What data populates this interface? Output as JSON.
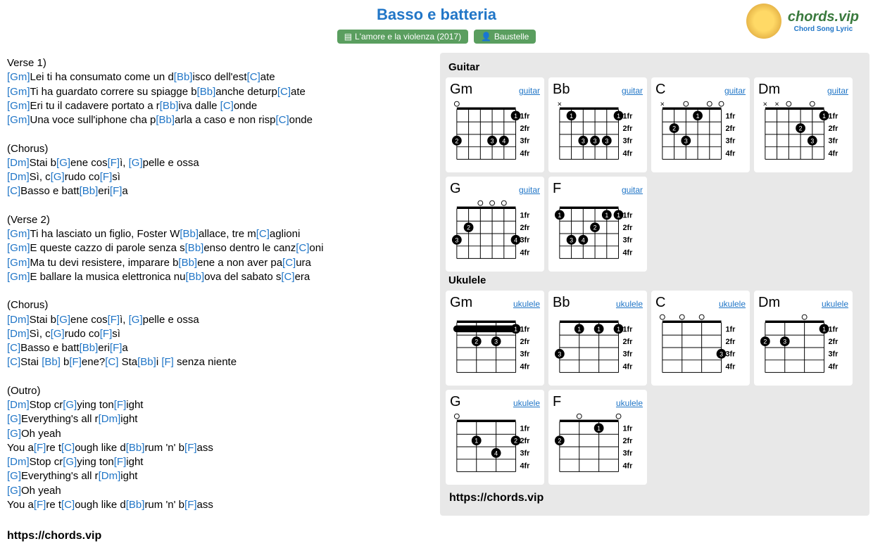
{
  "title": "Basso e batteria",
  "album_badge": "L'amore e la violenza (2017)",
  "artist_badge": "Baustelle",
  "logo": {
    "top": "chords.vip",
    "bottom": "Chord Song Lyric"
  },
  "footer_url": "https://chords.vip",
  "colors": {
    "link": "#2176c7",
    "badge_bg": "#5a9e5f",
    "panel_bg": "#e8e8e8"
  },
  "sections": {
    "guitar": {
      "label": "Guitar",
      "instr": "guitar"
    },
    "ukulele": {
      "label": "Ukulele",
      "instr": "ukulele"
    }
  },
  "fret_labels": [
    "1fr",
    "2fr",
    "3fr",
    "4fr"
  ],
  "chords_guitar": [
    {
      "name": "Gm",
      "strings": 6,
      "open": [
        null,
        null,
        0,
        null,
        null,
        null
      ],
      "mute": [],
      "dots": [
        [
          5,
          0,
          1
        ],
        [
          0,
          2,
          2
        ],
        [
          3,
          2,
          3
        ],
        [
          4,
          2,
          4
        ]
      ]
    },
    {
      "name": "Bb",
      "strings": 6,
      "open": [],
      "mute": [
        0
      ],
      "dots": [
        [
          1,
          0,
          1
        ],
        [
          5,
          0,
          1
        ],
        [
          2,
          2,
          3
        ],
        [
          3,
          2,
          3
        ],
        [
          4,
          2,
          3
        ]
      ]
    },
    {
      "name": "C",
      "strings": 6,
      "open": [
        null,
        null,
        2,
        null,
        4,
        5
      ],
      "mute": [
        0
      ],
      "dots": [
        [
          3,
          0,
          1
        ],
        [
          1,
          1,
          2
        ],
        [
          2,
          2,
          3
        ]
      ]
    },
    {
      "name": "Dm",
      "strings": 6,
      "open": [
        null,
        null,
        2,
        null,
        null,
        4
      ],
      "mute": [
        0,
        1
      ],
      "dots": [
        [
          5,
          0,
          1
        ],
        [
          3,
          1,
          2
        ],
        [
          4,
          2,
          3
        ]
      ]
    },
    {
      "name": "G",
      "strings": 6,
      "open": [
        null,
        null,
        2,
        3,
        4,
        null
      ],
      "mute": [],
      "dots": [
        [
          1,
          1,
          2
        ],
        [
          0,
          2,
          3
        ],
        [
          5,
          2,
          4
        ]
      ]
    },
    {
      "name": "F",
      "strings": 6,
      "open": [],
      "mute": [],
      "dots": [
        [
          0,
          0,
          1
        ],
        [
          4,
          0,
          1
        ],
        [
          5,
          0,
          1
        ],
        [
          3,
          1,
          2
        ],
        [
          1,
          2,
          3
        ],
        [
          2,
          2,
          4
        ]
      ]
    }
  ],
  "chords_ukulele": [
    {
      "name": "Gm",
      "strings": 4,
      "open": [],
      "mute": [],
      "dots": [
        [
          3,
          0,
          1
        ],
        [
          1,
          1,
          2
        ],
        [
          2,
          1,
          3
        ]
      ],
      "barre": [
        0,
        3,
        0
      ]
    },
    {
      "name": "Bb",
      "strings": 4,
      "open": [],
      "mute": [],
      "dots": [
        [
          1,
          0,
          1
        ],
        [
          2,
          0,
          1
        ],
        [
          3,
          0,
          1
        ],
        [
          0,
          2,
          3
        ]
      ]
    },
    {
      "name": "C",
      "strings": 4,
      "open": [
        0,
        1,
        2,
        null
      ],
      "mute": [],
      "dots": [
        [
          3,
          2,
          3
        ]
      ]
    },
    {
      "name": "Dm",
      "strings": 4,
      "open": [
        null,
        null,
        2,
        null
      ],
      "mute": [],
      "dots": [
        [
          3,
          0,
          1
        ],
        [
          0,
          1,
          2
        ],
        [
          1,
          1,
          3
        ]
      ]
    },
    {
      "name": "G",
      "strings": 4,
      "open": [
        0,
        null,
        null,
        null
      ],
      "mute": [],
      "dots": [
        [
          1,
          1,
          1
        ],
        [
          3,
          1,
          2
        ],
        [
          2,
          2,
          4
        ]
      ]
    },
    {
      "name": "F",
      "strings": 4,
      "open": [
        null,
        1,
        null,
        3
      ],
      "mute": [],
      "dots": [
        [
          2,
          0,
          1
        ],
        [
          0,
          1,
          2
        ]
      ]
    }
  ],
  "lyrics": [
    {
      "type": "label",
      "text": "Verse 1)"
    },
    {
      "type": "line",
      "parts": [
        [
          "[Gm]",
          "Lei ti ha consumato come un d"
        ],
        [
          "[Bb]",
          "isco dell'est"
        ],
        [
          "[C]",
          "ate"
        ]
      ]
    },
    {
      "type": "line",
      "parts": [
        [
          "[Gm]",
          "Ti ha guardato correre su spiagge b"
        ],
        [
          "[Bb]",
          "anche deturp"
        ],
        [
          "[C]",
          "ate"
        ]
      ]
    },
    {
      "type": "line",
      "parts": [
        [
          "[Gm]",
          "Eri tu il cadavere portato a r"
        ],
        [
          "[Bb]",
          "iva dalle "
        ],
        [
          "[C]",
          "onde"
        ]
      ]
    },
    {
      "type": "line",
      "parts": [
        [
          "[Gm]",
          "Una voce sull'iphone cha p"
        ],
        [
          "[Bb]",
          "arla a caso e non risp"
        ],
        [
          "[C]",
          "onde"
        ]
      ]
    },
    {
      "type": "blank"
    },
    {
      "type": "label",
      "text": "(Chorus)"
    },
    {
      "type": "line",
      "parts": [
        [
          "[Dm]",
          "Stai b"
        ],
        [
          "[G]",
          "ene cos"
        ],
        [
          "[F]",
          "ì, "
        ],
        [
          "[G]",
          "pelle e ossa"
        ]
      ]
    },
    {
      "type": "line",
      "parts": [
        [
          "[Dm]",
          "Sì, c"
        ],
        [
          "[G]",
          "rudo co"
        ],
        [
          "[F]",
          "sì"
        ]
      ]
    },
    {
      "type": "line",
      "parts": [
        [
          "[C]",
          "Basso e batt"
        ],
        [
          "[Bb]",
          "eri"
        ],
        [
          "[F]",
          "a"
        ]
      ]
    },
    {
      "type": "blank"
    },
    {
      "type": "label",
      "text": "(Verse 2)"
    },
    {
      "type": "line",
      "parts": [
        [
          "[Gm]",
          "Ti ha lasciato un figlio, Foster W"
        ],
        [
          "[Bb]",
          "allace, tre m"
        ],
        [
          "[C]",
          "aglioni"
        ]
      ]
    },
    {
      "type": "line",
      "parts": [
        [
          "[Gm]",
          "E queste cazzo di parole senza s"
        ],
        [
          "[Bb]",
          "enso dentro le canz"
        ],
        [
          "[C]",
          "oni"
        ]
      ]
    },
    {
      "type": "line",
      "parts": [
        [
          "[Gm]",
          "Ma tu devi resistere, imparare b"
        ],
        [
          "[Bb]",
          "ene a non aver pa"
        ],
        [
          "[C]",
          "ura"
        ]
      ]
    },
    {
      "type": "line",
      "parts": [
        [
          "[Gm]",
          "E ballare la musica elettronica nu"
        ],
        [
          "[Bb]",
          "ova del sabato s"
        ],
        [
          "[C]",
          "era"
        ]
      ]
    },
    {
      "type": "blank"
    },
    {
      "type": "label",
      "text": "(Chorus)"
    },
    {
      "type": "line",
      "parts": [
        [
          "[Dm]",
          "Stai b"
        ],
        [
          "[G]",
          "ene cos"
        ],
        [
          "[F]",
          "ì, "
        ],
        [
          "[G]",
          "pelle e ossa"
        ]
      ]
    },
    {
      "type": "line",
      "parts": [
        [
          "[Dm]",
          "Sì, c"
        ],
        [
          "[G]",
          "rudo co"
        ],
        [
          "[F]",
          "sì"
        ]
      ]
    },
    {
      "type": "line",
      "parts": [
        [
          "[C]",
          "Basso e batt"
        ],
        [
          "[Bb]",
          "eri"
        ],
        [
          "[F]",
          "a"
        ]
      ]
    },
    {
      "type": "line",
      "parts": [
        [
          "[C]",
          "Stai "
        ],
        [
          "[Bb]",
          " b"
        ],
        [
          "[F]",
          "ene?"
        ],
        [
          "[C]",
          " Sta"
        ],
        [
          "[Bb]",
          "i "
        ],
        [
          "[F]",
          " senza niente"
        ]
      ]
    },
    {
      "type": "blank"
    },
    {
      "type": "label",
      "text": "(Outro)"
    },
    {
      "type": "line",
      "parts": [
        [
          "[Dm]",
          "Stop cr"
        ],
        [
          "[G]",
          "ying ton"
        ],
        [
          "[F]",
          "ight"
        ]
      ]
    },
    {
      "type": "line",
      "parts": [
        [
          "[G]",
          "Everything's all r"
        ],
        [
          "[Dm]",
          "ight"
        ]
      ]
    },
    {
      "type": "line",
      "parts": [
        [
          "[G]",
          "Oh yeah"
        ]
      ]
    },
    {
      "type": "line",
      "parts": [
        [
          "",
          "You a"
        ],
        [
          "[F]",
          "re t"
        ],
        [
          "[C]",
          "ough like d"
        ],
        [
          "[Bb]",
          "rum 'n' b"
        ],
        [
          "[F]",
          "ass"
        ]
      ]
    },
    {
      "type": "line",
      "parts": [
        [
          "[Dm]",
          "Stop cr"
        ],
        [
          "[G]",
          "ying ton"
        ],
        [
          "[F]",
          "ight"
        ]
      ]
    },
    {
      "type": "line",
      "parts": [
        [
          "[G]",
          "Everything's all r"
        ],
        [
          "[Dm]",
          "ight"
        ]
      ]
    },
    {
      "type": "line",
      "parts": [
        [
          "[G]",
          "Oh yeah"
        ]
      ]
    },
    {
      "type": "line",
      "parts": [
        [
          "",
          "You a"
        ],
        [
          "[F]",
          "re t"
        ],
        [
          "[C]",
          "ough like d"
        ],
        [
          "[Bb]",
          "rum 'n' b"
        ],
        [
          "[F]",
          "ass"
        ]
      ]
    }
  ]
}
